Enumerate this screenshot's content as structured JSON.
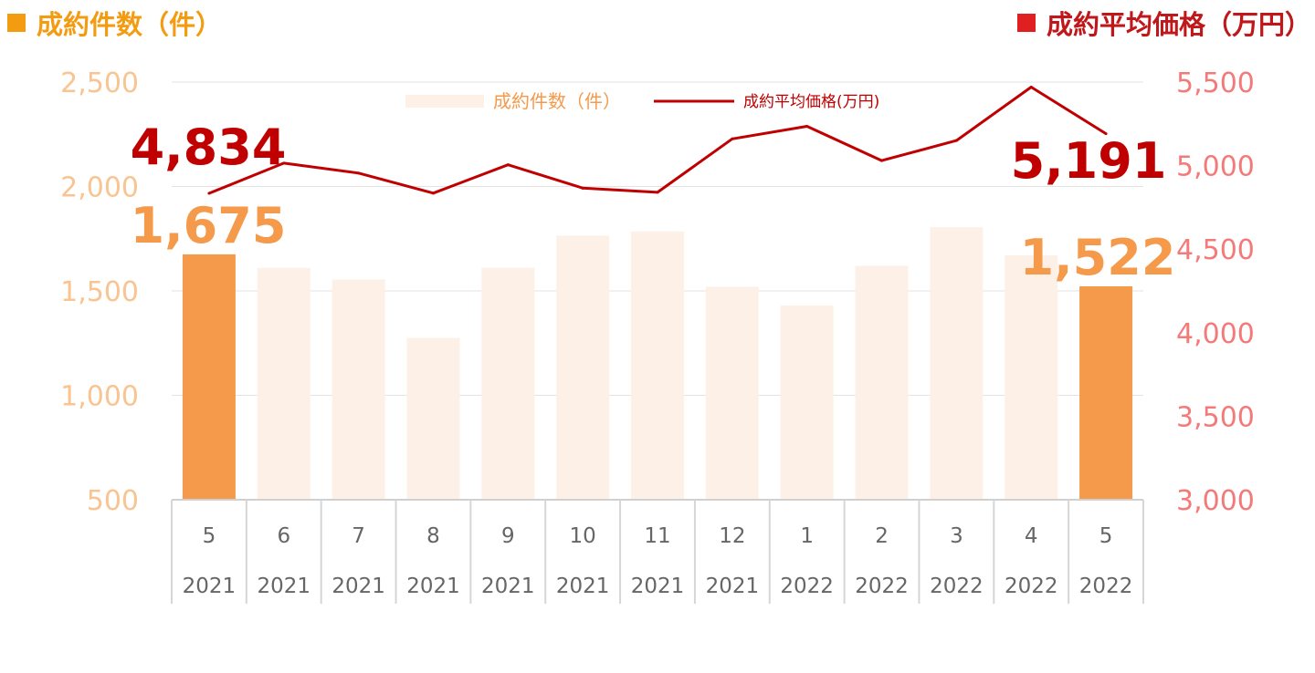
{
  "header": {
    "left_title": "成約件数（件）",
    "right_title": "成約平均価格（万円）",
    "left_color": "#f39c12",
    "right_color": "#e02020"
  },
  "chart_data": {
    "type": "bar+line",
    "categories": [
      {
        "month": "5",
        "year": "2021"
      },
      {
        "month": "6",
        "year": "2021"
      },
      {
        "month": "7",
        "year": "2021"
      },
      {
        "month": "8",
        "year": "2021"
      },
      {
        "month": "9",
        "year": "2021"
      },
      {
        "month": "10",
        "year": "2021"
      },
      {
        "month": "11",
        "year": "2021"
      },
      {
        "month": "12",
        "year": "2021"
      },
      {
        "month": "1",
        "year": "2022"
      },
      {
        "month": "2",
        "year": "2022"
      },
      {
        "month": "3",
        "year": "2022"
      },
      {
        "month": "4",
        "year": "2022"
      },
      {
        "month": "5",
        "year": "2022"
      }
    ],
    "series": [
      {
        "name": "成約件数（件）",
        "kind": "bar",
        "axis": "left",
        "values": [
          1675,
          1610,
          1555,
          1275,
          1610,
          1765,
          1785,
          1520,
          1430,
          1620,
          1805,
          1670,
          1522
        ],
        "highlight_indices": [
          0,
          12
        ],
        "color": "#f5994a",
        "faded_color": "#fdf1e7"
      },
      {
        "name": "成約平均価格(万円)",
        "kind": "line",
        "axis": "right",
        "values": [
          4834,
          5015,
          4955,
          4835,
          5005,
          4865,
          4840,
          5160,
          5235,
          5030,
          5150,
          5470,
          5191
        ],
        "color": "#c00000"
      }
    ],
    "left_axis": {
      "min": 500,
      "max": 2500,
      "ticks": [
        "500",
        "1,000",
        "1,500",
        "2,000",
        "2,500"
      ],
      "color": "#f9c492"
    },
    "right_axis": {
      "min": 3000,
      "max": 5500,
      "ticks": [
        "3,000",
        "3,500",
        "4,000",
        "4,500",
        "5,000",
        "5,500"
      ],
      "color": "#f47a7a"
    },
    "annotations": [
      {
        "text": "4,834",
        "series": 1,
        "index": 0
      },
      {
        "text": "1,675",
        "series": 0,
        "index": 0
      },
      {
        "text": "5,191",
        "series": 1,
        "index": 12
      },
      {
        "text": "1,522",
        "series": 0,
        "index": 12
      }
    ],
    "legend": {
      "placement": "top-center",
      "bar_label": "成約件数（件）",
      "line_label": "成約平均価格(万円)"
    },
    "grid": true
  }
}
